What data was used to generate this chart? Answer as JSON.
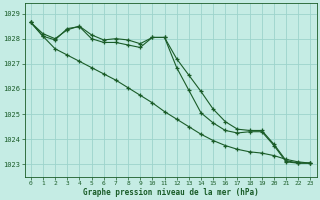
{
  "title": "Graphe pression niveau de la mer (hPa)",
  "bg_color": "#c5ece4",
  "grid_color": "#9dd4cc",
  "line_color": "#1a5c28",
  "xmin": -0.5,
  "xmax": 23.5,
  "ymin": 1022.5,
  "ymax": 1029.4,
  "yticks": [
    1023,
    1024,
    1025,
    1026,
    1027,
    1028,
    1029
  ],
  "xticks": [
    0,
    1,
    2,
    3,
    4,
    5,
    6,
    7,
    8,
    9,
    10,
    11,
    12,
    13,
    14,
    15,
    16,
    17,
    18,
    19,
    20,
    21,
    22,
    23
  ],
  "line1_x": [
    0,
    1,
    2,
    3,
    4,
    5,
    6,
    7,
    8,
    9,
    10,
    11,
    12,
    13,
    14,
    15,
    16,
    17,
    18,
    19,
    20,
    21,
    22,
    23
  ],
  "line1_y": [
    1028.65,
    1028.2,
    1028.0,
    1028.35,
    1028.5,
    1028.15,
    1027.95,
    1028.0,
    1027.95,
    1027.8,
    1028.05,
    1028.05,
    1027.2,
    1026.55,
    1025.9,
    1025.2,
    1024.7,
    1024.4,
    1024.35,
    1024.35,
    1023.8,
    1023.15,
    1023.05,
    1023.05
  ],
  "line2_x": [
    0,
    1,
    2,
    3,
    4,
    5,
    6,
    7,
    8,
    9,
    10,
    11,
    12,
    13,
    14,
    15,
    16,
    17,
    18,
    19,
    20,
    21,
    22,
    23
  ],
  "line2_y": [
    1028.65,
    1028.1,
    1027.95,
    1028.4,
    1028.48,
    1028.0,
    1027.85,
    1027.85,
    1027.75,
    1027.65,
    1028.05,
    1028.05,
    1026.85,
    1025.95,
    1025.05,
    1024.65,
    1024.35,
    1024.25,
    1024.3,
    1024.3,
    1023.75,
    1023.1,
    1023.05,
    1023.05
  ],
  "line3_x": [
    0,
    1,
    2,
    3,
    4,
    5,
    6,
    7,
    8,
    9,
    10,
    11,
    12,
    13,
    14,
    15,
    16,
    17,
    18,
    19,
    20,
    21,
    22,
    23
  ],
  "line3_y": [
    1028.65,
    1028.1,
    1027.6,
    1027.35,
    1027.1,
    1026.85,
    1026.6,
    1026.35,
    1026.05,
    1025.75,
    1025.45,
    1025.1,
    1024.8,
    1024.5,
    1024.2,
    1023.95,
    1023.75,
    1023.6,
    1023.5,
    1023.45,
    1023.35,
    1023.2,
    1023.1,
    1023.05
  ]
}
